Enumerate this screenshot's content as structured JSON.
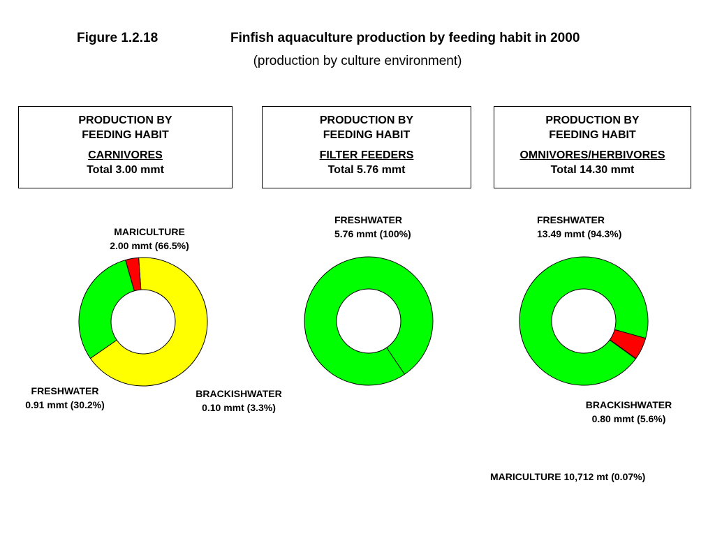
{
  "header": {
    "figure_label": "Figure 1.2.18",
    "title": "Finfish aquaculture production by feeding habit in 2000",
    "subtitle": "(production by culture environment)"
  },
  "boxes": [
    {
      "line1": "PRODUCTION BY",
      "line2": "FEEDING HABIT",
      "category": "CARNIVORES",
      "total": "Total 3.00 mmt"
    },
    {
      "line1": "PRODUCTION BY",
      "line2": "FEEDING HABIT",
      "category": "FILTER FEEDERS",
      "total": "Total 5.76 mmt"
    },
    {
      "line1": "PRODUCTION BY",
      "line2": "FEEDING HABIT",
      "category": "OMNIVORES/HERBIVORES",
      "total": "Total 14.30 mmt"
    }
  ],
  "colors": {
    "mariculture": "#ffff00",
    "freshwater": "#00ff00",
    "brackishwater": "#ff0000",
    "outline": "#000000"
  },
  "chart_data": [
    {
      "type": "pie",
      "title": "CARNIVORES",
      "unit": "mmt",
      "slices": [
        {
          "name": "MARICULTURE",
          "value": 2.0,
          "percent": 66.5,
          "value_label": "2.00 mmt (66.5%)"
        },
        {
          "name": "FRESHWATER",
          "value": 0.91,
          "percent": 30.2,
          "value_label": "0.91 mmt (30.2%)"
        },
        {
          "name": "BRACKISHWATER",
          "value": 0.1,
          "percent": 3.3,
          "value_label": "0.10 mmt (3.3%)"
        }
      ]
    },
    {
      "type": "pie",
      "title": "FILTER FEEDERS",
      "unit": "mmt",
      "slices": [
        {
          "name": "FRESHWATER",
          "value": 5.76,
          "percent": 100,
          "value_label": "5.76 mmt (100%)"
        }
      ]
    },
    {
      "type": "pie",
      "title": "OMNIVORES/HERBIVORES",
      "unit": "mmt",
      "slices": [
        {
          "name": "FRESHWATER",
          "value": 13.49,
          "percent": 94.3,
          "value_label": "13.49 mmt (94.3%)"
        },
        {
          "name": "BRACKISHWATER",
          "value": 0.8,
          "percent": 5.6,
          "value_label": "0.80 mmt (5.6%)"
        },
        {
          "name": "MARICULTURE",
          "value": 0.010712,
          "percent": 0.07,
          "value_label": "10,712 mt (0.07%)"
        }
      ]
    }
  ]
}
